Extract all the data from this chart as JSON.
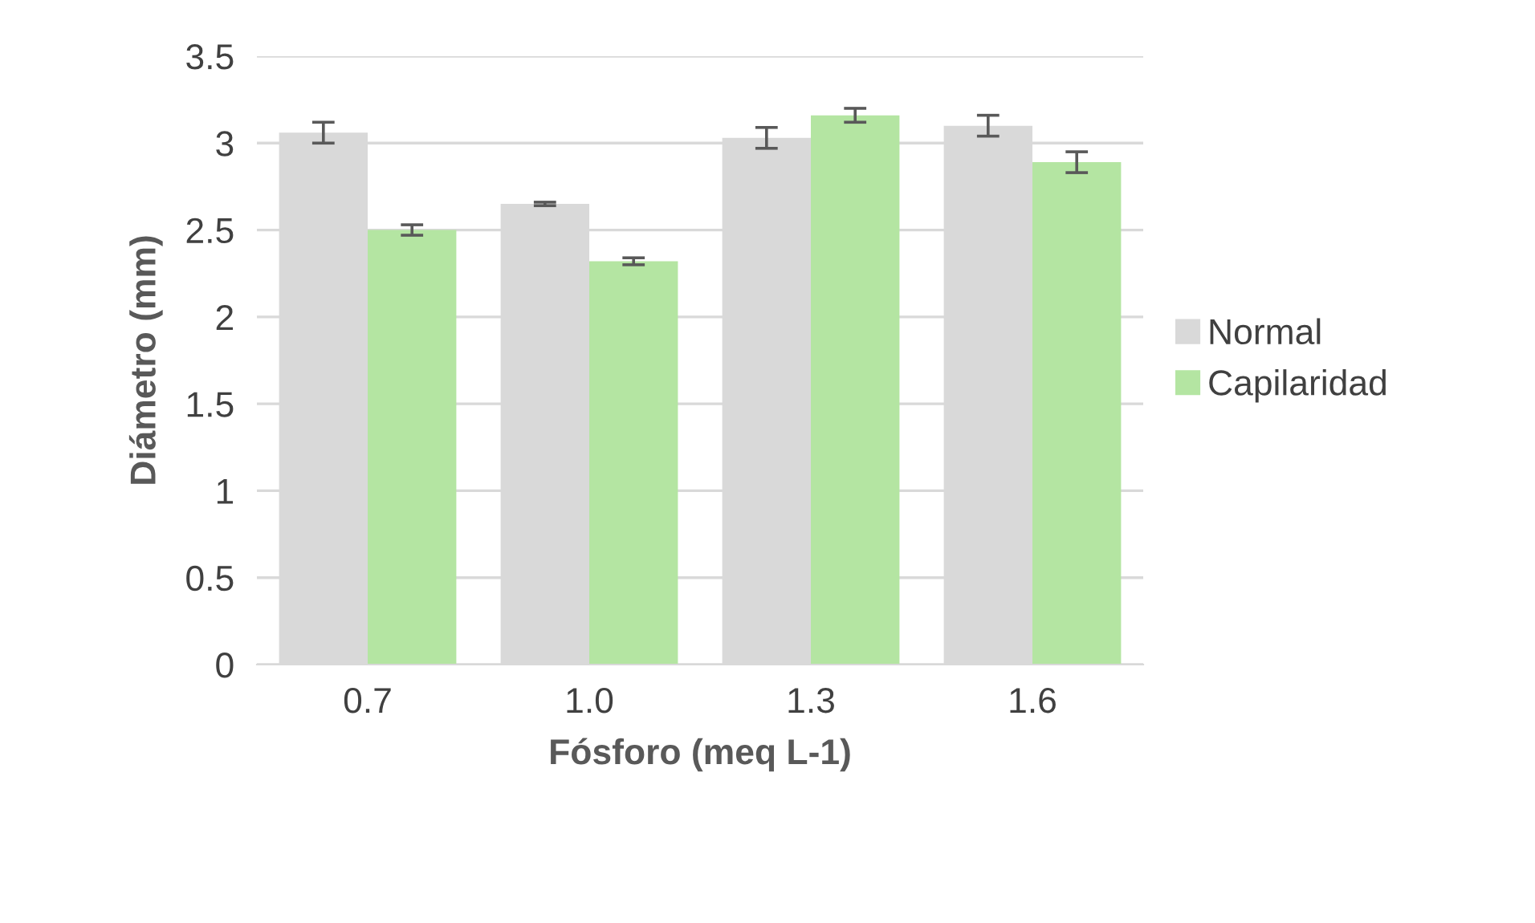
{
  "chart_data": {
    "type": "bar",
    "xlabel": "Fósforo (meq L-1)",
    "ylabel": "Diámetro (mm)",
    "categories": [
      "0.7",
      "1.0",
      "1.3",
      "1.6"
    ],
    "series": [
      {
        "name": "Normal",
        "color": "#d9d9d9",
        "values": [
          3.06,
          2.65,
          3.03,
          3.1
        ],
        "errors": [
          0.06,
          0.01,
          0.06,
          0.06
        ]
      },
      {
        "name": "Capilaridad",
        "color": "#b4e5a2",
        "values": [
          2.5,
          2.32,
          3.16,
          2.89
        ],
        "errors": [
          0.03,
          0.02,
          0.04,
          0.06
        ]
      }
    ],
    "ylim": [
      0,
      3.5
    ],
    "yticks": [
      0,
      0.5,
      1,
      1.5,
      2,
      2.5,
      3,
      3.5
    ],
    "grid": "y",
    "legend": "right"
  }
}
